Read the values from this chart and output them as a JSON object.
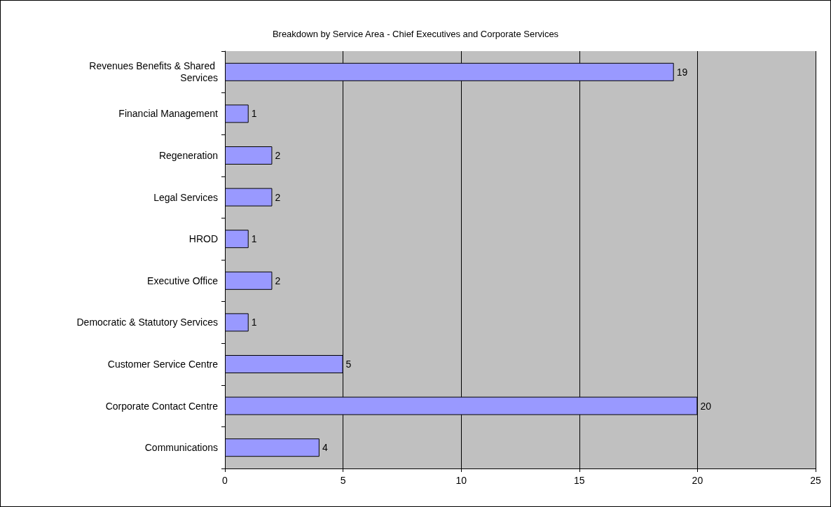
{
  "chart_data": {
    "type": "bar",
    "orientation": "horizontal",
    "title": "Breakdown by Service Area - Chief Executives and Corporate Services",
    "categories": [
      "Revenues Benefits & Shared Services",
      "Financial Management",
      "Regeneration",
      "Legal Services",
      "HROD",
      "Executive Office",
      "Democratic & Statutory Services",
      "Customer Service Centre",
      "Corporate Contact Centre",
      "Communications"
    ],
    "values": [
      19,
      1,
      2,
      2,
      1,
      2,
      1,
      5,
      20,
      4
    ],
    "color": "#9999ff",
    "xlim": [
      0,
      25
    ],
    "xticks": [
      0,
      5,
      10,
      15,
      20,
      25
    ],
    "grid": "x",
    "data_labels": true
  }
}
